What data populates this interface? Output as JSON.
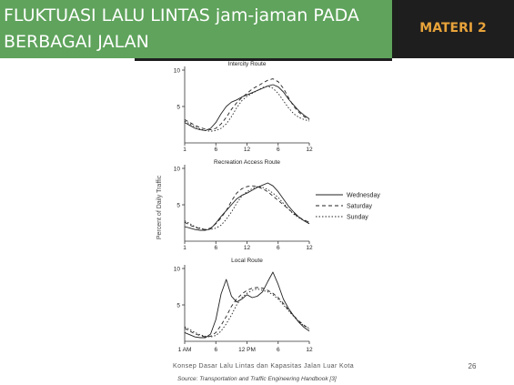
{
  "slide": {
    "title": "FLUKTUASI LALU LINTAS jam-jaman PADA BERBAGAI JALAN",
    "materi": "MATERI 2",
    "footer": "Konsep Dasar Lalu Lintas dan Kapasitas Jalan Luar Kota",
    "page_number": "26",
    "colors": {
      "title_bg": "#5fa35c",
      "materi_bg": "#1e1e1e",
      "materi_text": "#e8a33a"
    }
  },
  "figure": {
    "ylabel": "Percent of Daily Traffic",
    "source": "Source: Transportation and Traffic Engineering Handbook [3]",
    "legend": [
      {
        "name": "Wednesday",
        "dash": ""
      },
      {
        "name": "Saturday",
        "dash": "4,3"
      },
      {
        "name": "Sunday",
        "dash": "1.5,2"
      }
    ]
  },
  "chart_data": [
    {
      "type": "line",
      "title": "Intercity Route",
      "x": [
        0,
        1,
        2,
        3,
        4,
        5,
        6,
        7,
        8,
        9,
        10,
        11,
        12,
        13,
        14,
        15,
        16,
        17,
        18,
        19,
        20,
        21,
        22,
        23,
        24
      ],
      "xticks": [
        "1",
        "6",
        "12",
        "6",
        "12"
      ],
      "ylim": [
        0,
        10
      ],
      "yticks": [
        "10",
        "5"
      ],
      "series": [
        {
          "name": "Wednesday",
          "values": [
            2.8,
            2.4,
            2.0,
            1.8,
            1.7,
            2.0,
            2.8,
            4.0,
            5.0,
            5.6,
            5.9,
            6.3,
            6.6,
            6.9,
            7.2,
            7.5,
            7.8,
            8.0,
            7.7,
            7.0,
            6.0,
            5.2,
            4.4,
            3.8,
            3.3
          ]
        },
        {
          "name": "Saturday",
          "values": [
            3.2,
            2.8,
            2.4,
            2.1,
            1.9,
            1.8,
            2.0,
            2.6,
            3.5,
            4.6,
            5.5,
            6.2,
            6.8,
            7.4,
            7.8,
            8.2,
            8.6,
            8.8,
            8.4,
            7.5,
            6.2,
            5.0,
            4.2,
            3.6,
            3.2
          ]
        },
        {
          "name": "Sunday",
          "values": [
            3.0,
            2.6,
            2.2,
            1.9,
            1.7,
            1.6,
            1.7,
            2.0,
            2.6,
            3.6,
            4.8,
            5.8,
            6.4,
            6.8,
            7.2,
            7.6,
            7.8,
            7.5,
            6.8,
            5.8,
            4.8,
            4.0,
            3.5,
            3.2,
            3.0
          ]
        }
      ]
    },
    {
      "type": "line",
      "title": "Recreation Access Route",
      "x": [
        0,
        1,
        2,
        3,
        4,
        5,
        6,
        7,
        8,
        9,
        10,
        11,
        12,
        13,
        14,
        15,
        16,
        17,
        18,
        19,
        20,
        21,
        22,
        23,
        24
      ],
      "xticks": [
        "1",
        "6",
        "12",
        "6",
        "12"
      ],
      "ylim": [
        0,
        10
      ],
      "yticks": [
        "10",
        "5"
      ],
      "series": [
        {
          "name": "Wednesday",
          "values": [
            2.0,
            1.8,
            1.6,
            1.5,
            1.5,
            1.7,
            2.5,
            3.4,
            4.2,
            5.0,
            5.8,
            6.3,
            6.6,
            7.0,
            7.4,
            7.7,
            8.0,
            7.6,
            6.8,
            5.8,
            4.8,
            4.0,
            3.3,
            2.8,
            2.4
          ]
        },
        {
          "name": "Saturday",
          "values": [
            2.6,
            2.2,
            1.9,
            1.7,
            1.6,
            1.8,
            2.4,
            3.2,
            4.2,
            5.5,
            6.6,
            7.2,
            7.5,
            7.6,
            7.5,
            7.2,
            6.8,
            6.2,
            5.6,
            5.0,
            4.4,
            3.8,
            3.3,
            2.9,
            2.6
          ]
        },
        {
          "name": "Sunday",
          "values": [
            2.8,
            2.4,
            2.0,
            1.8,
            1.6,
            1.6,
            1.8,
            2.2,
            3.0,
            4.0,
            5.2,
            6.2,
            6.8,
            7.2,
            7.5,
            7.4,
            7.1,
            6.6,
            6.0,
            5.2,
            4.4,
            3.7,
            3.2,
            2.8,
            2.6
          ]
        }
      ]
    },
    {
      "type": "line",
      "title": "Local Route",
      "x": [
        0,
        1,
        2,
        3,
        4,
        5,
        6,
        7,
        8,
        9,
        10,
        11,
        12,
        13,
        14,
        15,
        16,
        17,
        18,
        19,
        20,
        21,
        22,
        23,
        24
      ],
      "xticks": [
        "1 AM",
        "6",
        "12 PM",
        "6",
        "12"
      ],
      "ylim": [
        0,
        10
      ],
      "yticks": [
        "10",
        "5"
      ],
      "series": [
        {
          "name": "Wednesday",
          "values": [
            1.2,
            0.9,
            0.6,
            0.5,
            0.5,
            1.0,
            3.0,
            6.5,
            8.5,
            6.2,
            5.4,
            5.8,
            6.4,
            6.0,
            6.2,
            6.8,
            8.2,
            9.5,
            7.8,
            5.8,
            4.5,
            3.5,
            2.6,
            1.9,
            1.4
          ]
        },
        {
          "name": "Saturday",
          "values": [
            1.8,
            1.4,
            1.0,
            0.8,
            0.6,
            0.7,
            1.2,
            2.2,
            3.4,
            4.8,
            5.8,
            6.5,
            7.0,
            7.3,
            7.4,
            7.3,
            7.0,
            6.6,
            6.0,
            5.2,
            4.3,
            3.5,
            2.8,
            2.2,
            1.7
          ]
        },
        {
          "name": "Sunday",
          "values": [
            2.0,
            1.6,
            1.2,
            0.9,
            0.7,
            0.6,
            0.8,
            1.4,
            2.4,
            3.6,
            5.0,
            6.0,
            6.6,
            7.0,
            7.2,
            7.0,
            6.8,
            6.4,
            5.8,
            5.0,
            4.2,
            3.4,
            2.7,
            2.1,
            1.8
          ]
        }
      ]
    }
  ]
}
